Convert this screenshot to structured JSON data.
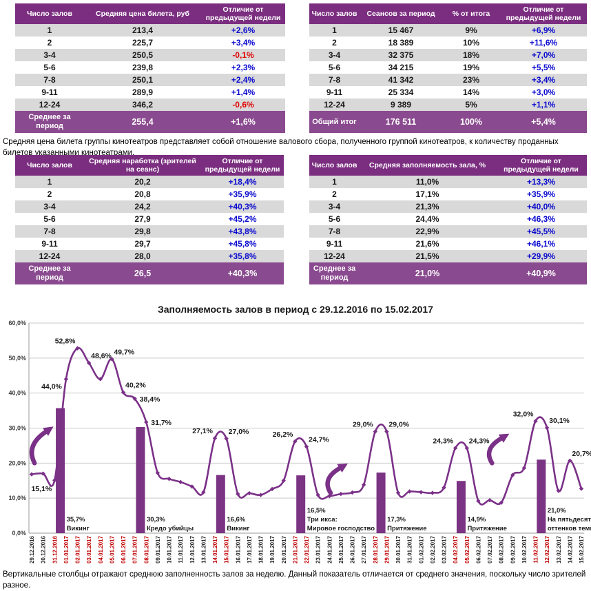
{
  "colors": {
    "table_header_bg": "#7B2E80",
    "table_total_bg": "#8A4A8F",
    "row_alt_bg": "#D9D9D9",
    "positive_value": "#0A0ACF",
    "negative_value": "#E00000",
    "line": "#7B3188",
    "bar": "#7B3383",
    "grid": "#C9C9C9",
    "axis": "#9A9A9A",
    "date_red": "#C00000",
    "date_black": "#262626",
    "tick_text": "#404040"
  },
  "notes": {
    "price_note": "Средняя цена билета группы кинотеатров представляет собой отношение валового сбора, полученного группой кинотеатров, к количеству проданных билетов указанными кинотеатрами.",
    "chart_note": "Вертикальные столбцы отражают среднюю заполненность залов за неделю. Данный показатель отличается от среднего значения, поскольку число зрителей разное."
  },
  "tables": {
    "price": {
      "headers": [
        "Число залов",
        "Средняя цена билета, руб",
        "Отличие от предыдущей недели"
      ],
      "rows": [
        [
          "1",
          "213,4",
          "+2,6%"
        ],
        [
          "2",
          "225,7",
          "+3,4%"
        ],
        [
          "3-4",
          "250,5",
          "-0,1%"
        ],
        [
          "5-6",
          "239,8",
          "+2,3%"
        ],
        [
          "7-8",
          "250,1",
          "+2,4%"
        ],
        [
          "9-11",
          "289,9",
          "+1,4%"
        ],
        [
          "12-24",
          "346,2",
          "-0,6%"
        ]
      ],
      "total": [
        "Среднее за период",
        "255,4",
        "+1,6%"
      ]
    },
    "sessions": {
      "headers": [
        "Число залов",
        "Сеансов за период",
        "% от итога",
        "Отличие от предыдущей недели"
      ],
      "rows": [
        [
          "1",
          "15 467",
          "9%",
          "+6,9%"
        ],
        [
          "2",
          "18 389",
          "10%",
          "+11,6%"
        ],
        [
          "3-4",
          "32 375",
          "18%",
          "+7,0%"
        ],
        [
          "5-6",
          "34 215",
          "19%",
          "+5,5%"
        ],
        [
          "7-8",
          "41 342",
          "23%",
          "+3,4%"
        ],
        [
          "9-11",
          "25 334",
          "14%",
          "+3,0%"
        ],
        [
          "12-24",
          "9 389",
          "5%",
          "+1,1%"
        ]
      ],
      "total": [
        "Общий итог",
        "176 511",
        "100%",
        "+5,4%"
      ]
    },
    "attendance": {
      "headers": [
        "Число залов",
        "Средняя наработка (зрителей на сеанс)",
        "Отличие от предыдущей недели"
      ],
      "rows": [
        [
          "1",
          "20,2",
          "+18,4%"
        ],
        [
          "2",
          "20,8",
          "+35,9%"
        ],
        [
          "3-4",
          "24,2",
          "+40,3%"
        ],
        [
          "5-6",
          "27,9",
          "+45,2%"
        ],
        [
          "7-8",
          "29,8",
          "+43,8%"
        ],
        [
          "9-11",
          "29,7",
          "+45,8%"
        ],
        [
          "12-24",
          "28,0",
          "+35,8%"
        ]
      ],
      "total": [
        "Среднее за период",
        "26,5",
        "+40,3%"
      ]
    },
    "occupancy": {
      "headers": [
        "Число залов",
        "Средняя заполняемость зала, %",
        "Отличие от предыдущей недели"
      ],
      "rows": [
        [
          "1",
          "11,0%",
          "+13,3%"
        ],
        [
          "2",
          "17,1%",
          "+35,9%"
        ],
        [
          "3-4",
          "21,3%",
          "+40,0%"
        ],
        [
          "5-6",
          "24,4%",
          "+46,3%"
        ],
        [
          "7-8",
          "22,9%",
          "+45,5%"
        ],
        [
          "9-11",
          "21,6%",
          "+46,1%"
        ],
        [
          "12-24",
          "21,5%",
          "+29,9%"
        ]
      ],
      "total": [
        "Среднее за период",
        "21,0%",
        "+40,9%"
      ]
    }
  },
  "chart_data": {
    "type": "line",
    "title": "Заполняемость залов в период с 29.12.2016 по 15.02.2017",
    "ylim": [
      0,
      60
    ],
    "yticks": [
      "0,0%",
      "10,0%",
      "20,0%",
      "30,0%",
      "40,0%",
      "50,0%",
      "60,0%"
    ],
    "grid": true,
    "x_dates": [
      "29.12.2016",
      "30.12.2016",
      "31.12.2016",
      "01.01.2017",
      "02.01.2017",
      "03.01.2017",
      "04.01.2017",
      "05.01.2017",
      "06.01.2017",
      "07.01.2017",
      "08.01.2017",
      "09.01.2017",
      "10.01.2017",
      "11.01.2017",
      "12.01.2017",
      "13.01.2017",
      "14.01.2017",
      "15.01.2017",
      "16.01.2017",
      "17.01.2017",
      "18.01.2017",
      "19.01.2017",
      "20.01.2017",
      "21.01.2017",
      "22.01.2017",
      "23.01.2017",
      "24.01.2017",
      "25.01.2017",
      "26.01.2017",
      "27.01.2017",
      "28.01.2017",
      "29.01.2017",
      "30.01.2017",
      "31.01.2017",
      "01.02.2017",
      "02.02.2017",
      "03.02.2017",
      "04.02.2017",
      "05.02.2017",
      "06.02.2017",
      "07.02.2017",
      "08.02.2017",
      "09.02.2017",
      "10.02.2017",
      "11.02.2017",
      "12.02.2017",
      "13.02.2017",
      "14.02.2017",
      "15.02.2017"
    ],
    "holiday_date_indices": [
      2,
      3,
      4,
      5,
      6,
      7,
      8,
      9,
      10,
      16,
      17,
      23,
      24,
      30,
      31,
      37,
      38,
      44,
      45
    ],
    "values": [
      16.8,
      17.0,
      15.1,
      44.0,
      52.8,
      48.6,
      44.0,
      49.7,
      40.2,
      38.4,
      31.7,
      17.2,
      15.5,
      14.6,
      13.3,
      11.7,
      27.1,
      27.0,
      11.2,
      11.4,
      10.9,
      12.6,
      15.0,
      26.2,
      24.7,
      10.9,
      10.6,
      11.2,
      11.6,
      13.8,
      29.0,
      29.0,
      11.5,
      11.9,
      11.7,
      11.5,
      13.0,
      24.3,
      24.3,
      9.2,
      9.4,
      8.7,
      16.6,
      18.6,
      32.0,
      30.1,
      12.1,
      20.7,
      12.7
    ],
    "point_labels": [
      {
        "i": 2,
        "text": "15,1%",
        "anchor": "below-left"
      },
      {
        "i": 3,
        "text": "44,0%",
        "anchor": "left"
      },
      {
        "i": 4,
        "text": "52,8%",
        "anchor": "above-left"
      },
      {
        "i": 5,
        "text": "48,6%",
        "anchor": "above-right"
      },
      {
        "i": 7,
        "text": "49,7%",
        "anchor": "above-right"
      },
      {
        "i": 8,
        "text": "40,2%",
        "anchor": "above-right"
      },
      {
        "i": 9,
        "text": "38,4%",
        "anchor": "right"
      },
      {
        "i": 10,
        "text": "31,7%",
        "anchor": "right"
      },
      {
        "i": 16,
        "text": "27,1%",
        "anchor": "above-left"
      },
      {
        "i": 17,
        "text": "27,0%",
        "anchor": "above-right"
      },
      {
        "i": 23,
        "text": "26,2%",
        "anchor": "above-left"
      },
      {
        "i": 24,
        "text": "24,7%",
        "anchor": "above-right"
      },
      {
        "i": 30,
        "text": "29,0%",
        "anchor": "above-left"
      },
      {
        "i": 31,
        "text": "29,0%",
        "anchor": "above-right"
      },
      {
        "i": 37,
        "text": "24,3%",
        "anchor": "above-left"
      },
      {
        "i": 38,
        "text": "24,3%",
        "anchor": "above-right"
      },
      {
        "i": 44,
        "text": "32,0%",
        "anchor": "above-left"
      },
      {
        "i": 45,
        "text": "30,1%",
        "anchor": "above-right"
      },
      {
        "i": 47,
        "text": "20,7%",
        "anchor": "above-right"
      }
    ],
    "week_bars": [
      {
        "from_index": 2,
        "to_index": 3,
        "value": 35.7,
        "label": "35,7%",
        "movie_lines": [
          "Викинг"
        ]
      },
      {
        "from_index": 9,
        "to_index": 10,
        "value": 30.3,
        "label": "30,3%",
        "movie_lines": [
          "Кредо убийцы"
        ]
      },
      {
        "from_index": 16,
        "to_index": 17,
        "value": 16.6,
        "label": "16,6%",
        "movie_lines": [
          "Викинг"
        ]
      },
      {
        "from_index": 23,
        "to_index": 24,
        "value": 16.5,
        "label": "16,5%",
        "movie_lines": [
          "Три икса:",
          "Мировое господство"
        ]
      },
      {
        "from_index": 30,
        "to_index": 31,
        "value": 17.3,
        "label": "17,3%",
        "movie_lines": [
          "Притяжение"
        ]
      },
      {
        "from_index": 37,
        "to_index": 38,
        "value": 14.9,
        "label": "14,9%",
        "movie_lines": [
          "Притяжение"
        ]
      },
      {
        "from_index": 44,
        "to_index": 45,
        "value": 21.0,
        "label": "21,0%",
        "movie_lines": [
          "На пятьдесят",
          "оттенков темнее"
        ]
      }
    ],
    "arrows": [
      {
        "from_day": 0.25,
        "from_pct": 20.0,
        "to_day": 1.7,
        "to_pct": 30.0
      },
      {
        "from_day": 26.1,
        "from_pct": 11.5,
        "to_day": 27.4,
        "to_pct": 19.5
      },
      {
        "from_day": 40.2,
        "from_pct": 20.0,
        "to_day": 41.5,
        "to_pct": 28.0
      }
    ]
  }
}
